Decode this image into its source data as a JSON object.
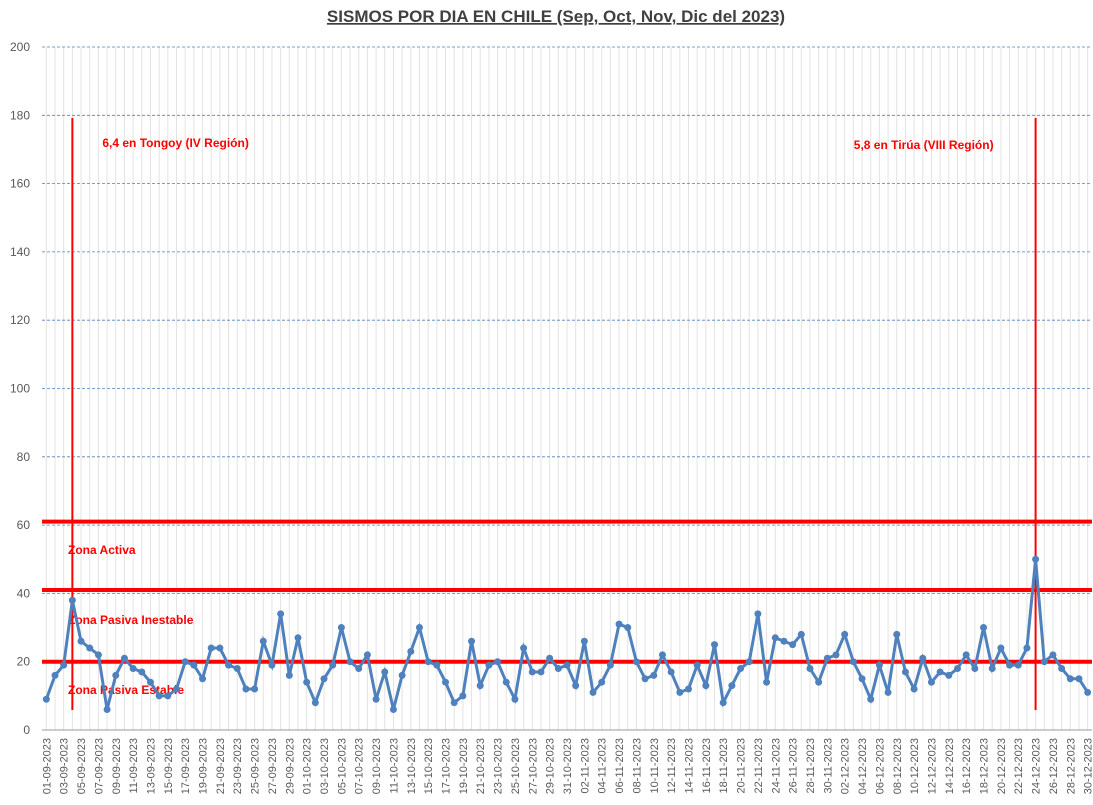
{
  "chart_data": {
    "type": "line",
    "title": "SISMOS POR DIA EN CHILE (Sep, Oct, Nov, Dic del 2023)",
    "categories": [
      "01-09-2023",
      null,
      "03-09-2023",
      null,
      "05-09-2023",
      null,
      "07-09-2023",
      null,
      "09-09-2023",
      null,
      "11-09-2023",
      null,
      "13-09-2023",
      null,
      "15-09-2023",
      null,
      "17-09-2023",
      null,
      "19-09-2023",
      null,
      "21-09-2023",
      null,
      "23-09-2023",
      null,
      "25-09-2023",
      null,
      "27-09-2023",
      null,
      "29-09-2023",
      null,
      "01-10-2023",
      null,
      "03-10-2023",
      null,
      "05-10-2023",
      null,
      "07-10-2023",
      null,
      "09-10-2023",
      null,
      "11-10-2023",
      null,
      "13-10-2023",
      null,
      "15-10-2023",
      null,
      "17-10-2023",
      null,
      "19-10-2023",
      null,
      "21-10-2023",
      null,
      "23-10-2023",
      null,
      "25-10-2023",
      null,
      "27-10-2023",
      null,
      "29-10-2023",
      null,
      "31-10-2023",
      null,
      "02-11-2023",
      null,
      "04-11-2023",
      null,
      "06-11-2023",
      null,
      "08-11-2023",
      null,
      "10-11-2023",
      null,
      "12-11-2023",
      null,
      "14-11-2023",
      null,
      "16-11-2023",
      null,
      "18-11-2023",
      null,
      "20-11-2023",
      null,
      "22-11-2023",
      null,
      "24-11-2023",
      null,
      "26-11-2023",
      null,
      "28-11-2023",
      null,
      "30-11-2023",
      null,
      "02-12-2023",
      null,
      "04-12-2023",
      null,
      "06-12-2023",
      null,
      "08-12-2023",
      null,
      "10-12-2023",
      null,
      "12-12-2023",
      null,
      "14-12-2023",
      null,
      "16-12-2023",
      null,
      "18-12-2023",
      null,
      "20-12-2023",
      null,
      "22-12-2023",
      null,
      "24-12-2023",
      null,
      "26-12-2023",
      null,
      "28-12-2023",
      null,
      "30-12-2023"
    ],
    "values": [
      9,
      16,
      19,
      38,
      26,
      24,
      22,
      6,
      16,
      21,
      18,
      17,
      14,
      10,
      10,
      12,
      20,
      19,
      15,
      24,
      24,
      19,
      18,
      12,
      12,
      26,
      19,
      34,
      16,
      27,
      14,
      8,
      15,
      19,
      30,
      20,
      18,
      22,
      9,
      17,
      6,
      16,
      23,
      30,
      20,
      19,
      14,
      8,
      10,
      26,
      13,
      19,
      20,
      14,
      9,
      24,
      17,
      17,
      21,
      18,
      19,
      13,
      26,
      11,
      14,
      19,
      31,
      30,
      20,
      15,
      16,
      22,
      17,
      11,
      12,
      19,
      13,
      25,
      8,
      13,
      18,
      20,
      34,
      14,
      27,
      26,
      25,
      28,
      18,
      14,
      21,
      22,
      28,
      20,
      15,
      9,
      19,
      11,
      28,
      17,
      12,
      21,
      14,
      17,
      16,
      18,
      22,
      18,
      30,
      18,
      24,
      19,
      19,
      24,
      50,
      20,
      22,
      18,
      15,
      15,
      11
    ],
    "color": "#4f81bd",
    "ylim": [
      0,
      200
    ],
    "yticks": [
      0,
      20,
      40,
      60,
      80,
      100,
      120,
      140,
      160,
      180,
      200
    ],
    "grid": true,
    "reference_lines": [
      20,
      41,
      61
    ],
    "reference_color": "#ff0000",
    "zone_labels": [
      "Zona Activa",
      "Zona Pasiva Inestable",
      "Zona Pasiva Estable"
    ],
    "events": [
      {
        "x": 3,
        "label": "6,4 en Tongoy (IV Región)"
      },
      {
        "x": 114,
        "label": "5,8 en Tirúa (VIII Región)"
      }
    ]
  }
}
